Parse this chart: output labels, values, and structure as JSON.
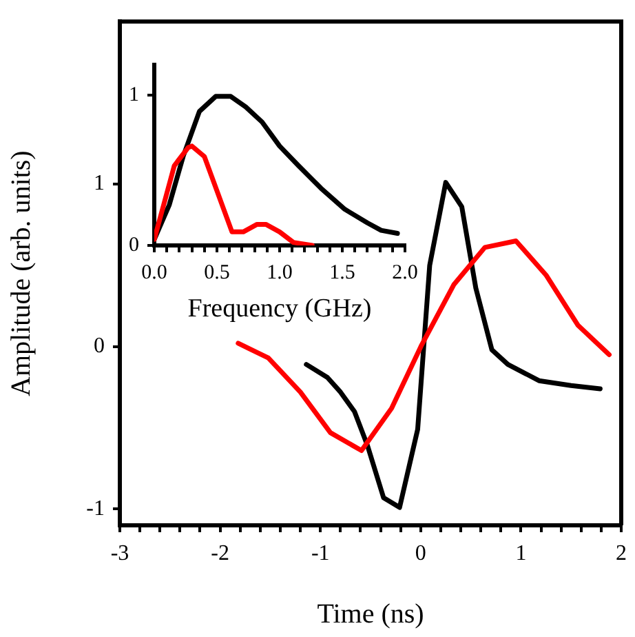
{
  "chart_data": [
    {
      "type": "line",
      "xlabel": "Time (ns)",
      "ylabel": "Amplitude (arb. units)",
      "xlim": [
        -3,
        2
      ],
      "ylim": [
        -1.1,
        2.0
      ],
      "xticks": [
        -3,
        {
          "value": -2.8,
          "label": null
        },
        {
          "value": -2.6,
          "label": null
        },
        {
          "value": -2.4,
          "label": null
        },
        {
          "value": -2.2,
          "label": null
        },
        -2,
        {
          "value": -1.8,
          "label": null
        },
        {
          "value": -1.6,
          "label": null
        },
        {
          "value": -1.4,
          "label": null
        },
        {
          "value": -1.2,
          "label": null
        },
        -1,
        {
          "value": -0.8,
          "label": null
        },
        {
          "value": -0.6,
          "label": null
        },
        {
          "value": -0.4,
          "label": null
        },
        {
          "value": -0.2,
          "label": null
        },
        0,
        {
          "value": 0.2,
          "label": null
        },
        {
          "value": 0.4,
          "label": null
        },
        {
          "value": 0.6,
          "label": null
        },
        {
          "value": 0.8,
          "label": null
        },
        1,
        {
          "value": 1.2,
          "label": null
        },
        {
          "value": 1.4,
          "label": null
        },
        {
          "value": 1.6,
          "label": null
        },
        {
          "value": 1.8,
          "label": null
        },
        2
      ],
      "yticks": [
        -1,
        0,
        1
      ],
      "grid": false,
      "legend": false,
      "series": [
        {
          "color": "#000000",
          "x": [
            -1.14,
            -0.93,
            -0.8,
            -0.66,
            -0.53,
            -0.37,
            -0.21,
            -0.03,
            0.09,
            0.25,
            0.41,
            0.55,
            0.71,
            0.87,
            1.18,
            1.5,
            1.79
          ],
          "values": [
            -0.11,
            -0.19,
            -0.28,
            -0.4,
            -0.61,
            -0.93,
            -0.99,
            -0.51,
            0.5,
            1.01,
            0.86,
            0.36,
            -0.02,
            -0.11,
            -0.21,
            -0.24,
            -0.26
          ]
        },
        {
          "color": "#ff0000",
          "x": [
            -1.82,
            -1.52,
            -1.2,
            -0.9,
            -0.59,
            -0.29,
            0.01,
            0.33,
            0.64,
            0.95,
            1.25,
            1.57,
            1.88
          ],
          "values": [
            0.02,
            -0.07,
            -0.28,
            -0.53,
            -0.64,
            -0.38,
            0.01,
            0.38,
            0.61,
            0.65,
            0.44,
            0.13,
            -0.05
          ]
        }
      ]
    },
    {
      "type": "line",
      "xlabel": "Frequency (GHz)",
      "xlim": [
        0,
        2.0
      ],
      "ylim": [
        0,
        1.2
      ],
      "xticks": [
        {
          "value": 0,
          "label": "0.0"
        },
        {
          "value": 0.1,
          "label": null
        },
        {
          "value": 0.2,
          "label": null
        },
        {
          "value": 0.3,
          "label": null
        },
        {
          "value": 0.4,
          "label": null
        },
        {
          "value": 0.5,
          "label": "0.5"
        },
        {
          "value": 0.6,
          "label": null
        },
        {
          "value": 0.7,
          "label": null
        },
        {
          "value": 0.8,
          "label": null
        },
        {
          "value": 0.9,
          "label": null
        },
        {
          "value": 1.0,
          "label": "1.0"
        },
        {
          "value": 1.1,
          "label": null
        },
        {
          "value": 1.2,
          "label": null
        },
        {
          "value": 1.3,
          "label": null
        },
        {
          "value": 1.4,
          "label": null
        },
        {
          "value": 1.5,
          "label": "1.5"
        },
        {
          "value": 1.6,
          "label": null
        },
        {
          "value": 1.7,
          "label": null
        },
        {
          "value": 1.8,
          "label": null
        },
        {
          "value": 1.9,
          "label": null
        },
        {
          "value": 2.0,
          "label": "2.0"
        }
      ],
      "yticks": [
        0,
        1
      ],
      "grid": false,
      "legend": false,
      "series": [
        {
          "color": "#000000",
          "x": [
            0,
            0.12,
            0.23,
            0.36,
            0.49,
            0.61,
            0.73,
            0.86,
            1.0,
            1.15,
            1.33,
            1.52,
            1.7,
            1.81,
            1.94
          ],
          "values": [
            0.04,
            0.27,
            0.59,
            0.89,
            0.99,
            0.99,
            0.92,
            0.82,
            0.66,
            0.53,
            0.38,
            0.24,
            0.15,
            0.1,
            0.08
          ]
        },
        {
          "color": "#ff0000",
          "x": [
            0,
            0.16,
            0.27,
            0.3,
            0.4,
            0.51,
            0.62,
            0.71,
            0.82,
            0.89,
            1.0,
            1.11,
            1.26
          ],
          "values": [
            0.04,
            0.53,
            0.65,
            0.66,
            0.59,
            0.34,
            0.09,
            0.09,
            0.14,
            0.14,
            0.09,
            0.02,
            0.0
          ]
        }
      ]
    }
  ]
}
